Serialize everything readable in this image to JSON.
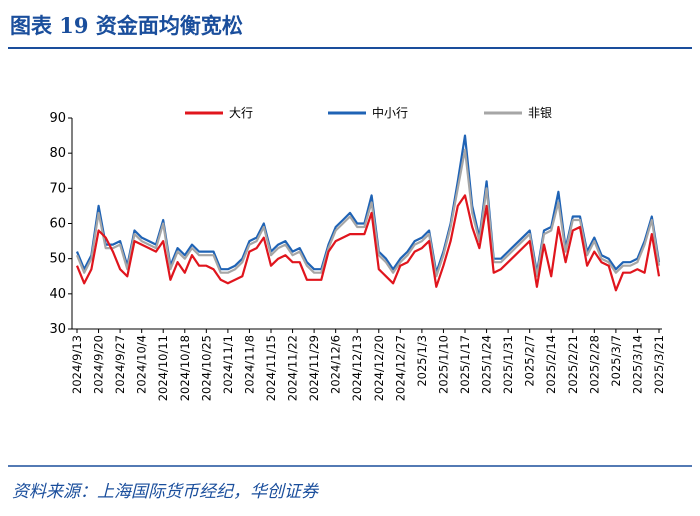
{
  "chart_data": {
    "type": "line",
    "title": "图表 19    资金面均衡宽松",
    "source": "资料来源：上海国际货币经纪，华创证券",
    "categories": [
      "2024/9/13",
      null,
      null,
      "2024/9/20",
      null,
      null,
      "2024/9/27",
      null,
      null,
      "2024/10/4",
      null,
      null,
      "2024/10/11",
      null,
      null,
      "2024/10/18",
      null,
      null,
      "2024/10/25",
      null,
      null,
      "2024/11/1",
      null,
      null,
      "2024/11/8",
      null,
      null,
      "2024/11/15",
      null,
      null,
      "2024/11/22",
      null,
      null,
      "2024/11/29",
      null,
      null,
      "2024/12/6",
      null,
      null,
      "2024/12/13",
      null,
      null,
      "2024/12/20",
      null,
      null,
      "2024/12/27",
      null,
      null,
      "2025/1/3",
      null,
      null,
      "2025/1/10",
      null,
      null,
      "2025/1/17",
      null,
      null,
      "2025/1/24",
      null,
      null,
      "2025/1/31",
      null,
      null,
      "2025/2/7",
      null,
      null,
      "2025/2/14",
      null,
      null,
      "2025/2/21",
      null,
      null,
      "2025/2/28",
      null,
      null,
      "2025/3/7",
      null,
      null,
      "2025/3/14",
      null,
      null,
      "2025/3/21"
    ],
    "series": [
      {
        "name": "大行",
        "color": "#e0151d",
        "values": [
          48,
          43,
          47,
          58,
          56,
          52,
          47,
          45,
          55,
          54,
          53,
          52,
          55,
          44,
          49,
          46,
          51,
          48,
          48,
          47,
          44,
          43,
          44,
          45,
          52,
          53,
          56,
          48,
          50,
          51,
          49,
          49,
          44,
          44,
          44,
          52,
          55,
          56,
          57,
          57,
          57,
          63,
          47,
          45,
          43,
          48,
          49,
          52,
          53,
          55,
          42,
          48,
          55,
          65,
          68,
          59,
          53,
          65,
          46,
          47,
          49,
          51,
          53,
          55,
          42,
          54,
          45,
          59,
          49,
          58,
          59,
          48,
          52,
          49,
          48,
          41,
          46,
          46,
          47,
          46,
          57,
          45
        ]
      },
      {
        "name": "中小行",
        "color": "#1f63b5",
        "values": [
          52,
          47,
          51,
          65,
          54,
          54,
          55,
          48,
          58,
          56,
          55,
          54,
          61,
          48,
          53,
          51,
          54,
          52,
          52,
          52,
          47,
          47,
          48,
          50,
          55,
          56,
          60,
          52,
          54,
          55,
          52,
          53,
          49,
          47,
          47,
          54,
          59,
          61,
          63,
          60,
          60,
          68,
          52,
          50,
          47,
          50,
          52,
          55,
          56,
          58,
          46,
          52,
          60,
          72,
          85,
          65,
          56,
          72,
          50,
          50,
          52,
          54,
          56,
          58,
          46,
          58,
          59,
          69,
          53,
          62,
          62,
          52,
          56,
          51,
          50,
          47,
          49,
          49,
          50,
          55,
          62,
          49
        ]
      },
      {
        "name": "非银",
        "color": "#a6a6a6",
        "values": [
          51,
          46,
          50,
          63,
          53,
          53,
          54,
          47,
          57,
          55,
          54,
          53,
          60,
          47,
          52,
          50,
          53,
          51,
          51,
          51,
          46,
          46,
          47,
          49,
          54,
          55,
          59,
          51,
          53,
          54,
          51,
          52,
          48,
          46,
          46,
          53,
          58,
          60,
          62,
          59,
          59,
          66,
          51,
          49,
          46,
          49,
          51,
          54,
          55,
          57,
          45,
          51,
          59,
          70,
          81,
          63,
          55,
          70,
          49,
          49,
          51,
          53,
          55,
          57,
          45,
          57,
          58,
          66,
          52,
          61,
          61,
          51,
          55,
          50,
          49,
          46,
          48,
          48,
          49,
          54,
          61,
          48
        ]
      }
    ],
    "ylim": [
      30,
      90
    ],
    "yticks": [
      30,
      40,
      50,
      60,
      70,
      80,
      90
    ]
  }
}
